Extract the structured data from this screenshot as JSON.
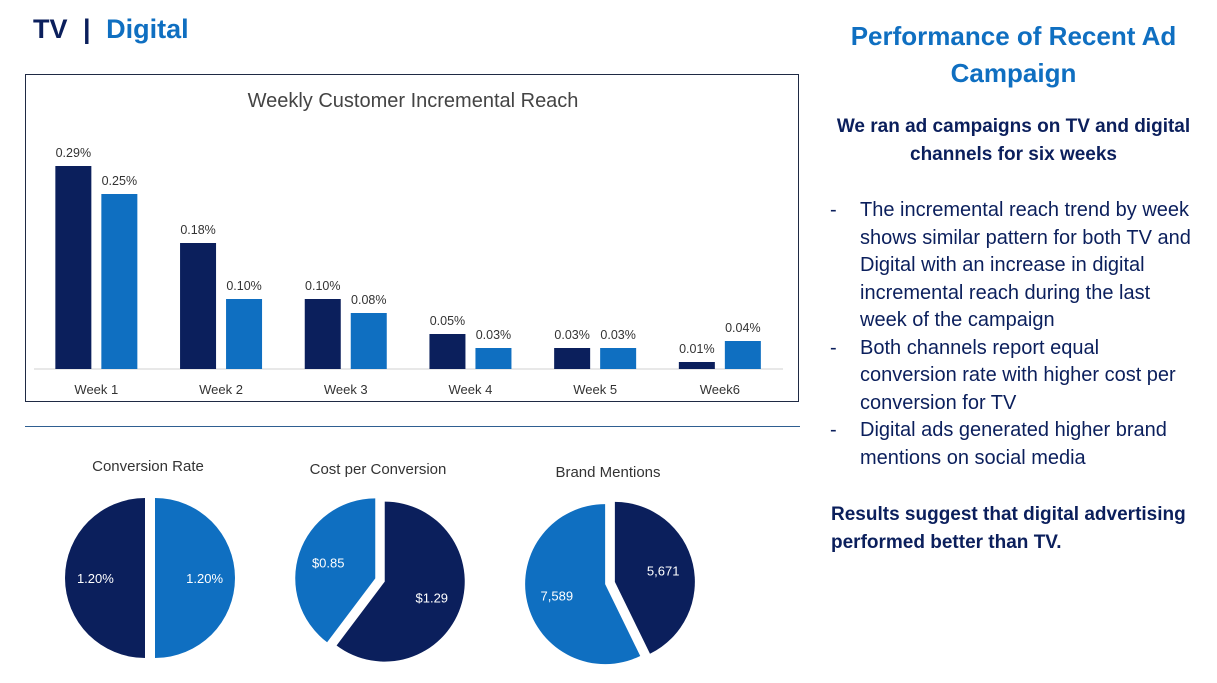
{
  "header": {
    "tv": "TV",
    "separator": "|",
    "digital": "Digital"
  },
  "right_panel": {
    "title": "Performance of Recent Ad Campaign",
    "summary": "We ran ad campaigns on TV and digital channels for six weeks",
    "bullets": [
      "The incremental reach trend by week shows similar pattern for both TV and Digital with an increase in digital incremental reach during the last week of the campaign",
      "Both channels report equal conversion rate with higher cost per conversion for TV",
      "Digital ads generated higher brand mentions on social media"
    ],
    "bullet_marker": "-",
    "conclusion": "Results suggest that digital advertising performed better than TV."
  },
  "colors": {
    "tv": "#0b1f5c",
    "digital": "#0f6fc1"
  },
  "chart_data": [
    {
      "type": "bar",
      "title": "Weekly Customer Incremental Reach",
      "categories": [
        "Week 1",
        "Week 2",
        "Week 3",
        "Week 4",
        "Week 5",
        "Week6"
      ],
      "series": [
        {
          "values": [
            0.29,
            0.18,
            0.1,
            0.05,
            0.03,
            0.01
          ],
          "labels": [
            "0.29%",
            "0.18%",
            "0.10%",
            "0.05%",
            "0.03%",
            "0.01%"
          ],
          "color": "#0b1f5c"
        },
        {
          "values": [
            0.25,
            0.1,
            0.08,
            0.03,
            0.03,
            0.04
          ],
          "labels": [
            "0.25%",
            "0.10%",
            "0.08%",
            "0.03%",
            "0.03%",
            "0.04%"
          ],
          "color": "#0f6fc1"
        }
      ],
      "ylim": [
        0,
        0.3
      ],
      "grid": false
    },
    {
      "type": "pie",
      "title": "Conversion Rate",
      "slices": [
        {
          "value": 1.2,
          "label": "1.20%",
          "color": "#0f6fc1"
        },
        {
          "value": 1.2,
          "label": "1.20%",
          "color": "#0b1f5c"
        }
      ]
    },
    {
      "type": "pie",
      "title": "Cost per Conversion",
      "slices": [
        {
          "value": 1.29,
          "label": "$1.29",
          "color": "#0b1f5c"
        },
        {
          "value": 0.85,
          "label": "$0.85",
          "color": "#0f6fc1"
        }
      ]
    },
    {
      "type": "pie",
      "title": "Brand Mentions",
      "slices": [
        {
          "value": 5671,
          "label": "5,671",
          "color": "#0b1f5c"
        },
        {
          "value": 7589,
          "label": "7,589",
          "color": "#0f6fc1"
        }
      ]
    }
  ]
}
